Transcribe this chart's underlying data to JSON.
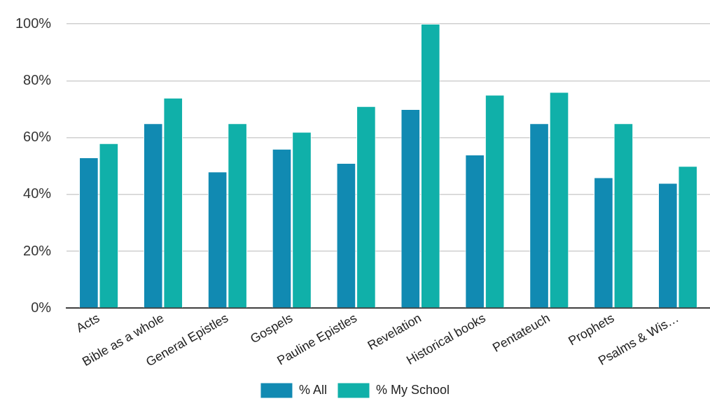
{
  "chart_data": {
    "type": "bar",
    "categories": [
      "Acts",
      "Bible as a whole",
      "General Epistles",
      "Gospels",
      "Pauline Epistles",
      "Revelation",
      "Historical books",
      "Pentateuch",
      "Prophets",
      "Psalms & Wis…"
    ],
    "series": [
      {
        "name": "% All",
        "color": "#118ab2",
        "values": [
          53,
          65,
          48,
          56,
          51,
          70,
          54,
          65,
          46,
          44
        ]
      },
      {
        "name": "% My School",
        "color": "#10b0a9",
        "values": [
          58,
          74,
          65,
          62,
          71,
          100,
          75,
          76,
          65,
          50
        ]
      }
    ],
    "ylim": [
      0,
      100
    ],
    "yticks": [
      {
        "value": 0,
        "label": "0%"
      },
      {
        "value": 20,
        "label": "20%"
      },
      {
        "value": 40,
        "label": "40%"
      },
      {
        "value": 60,
        "label": "60%"
      },
      {
        "value": 80,
        "label": "80%"
      },
      {
        "value": 100,
        "label": "100%"
      }
    ],
    "grid": "y",
    "legend": "bottom"
  }
}
